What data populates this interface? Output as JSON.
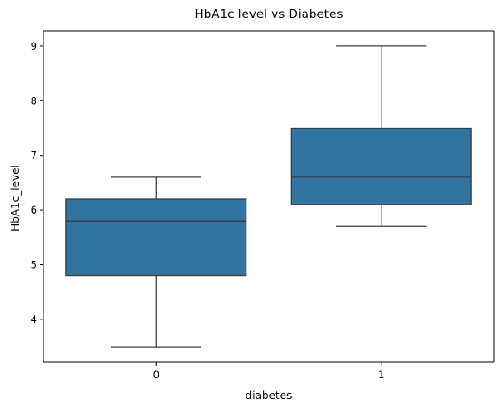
{
  "chart_data": {
    "type": "box",
    "title": "HbA1c level vs Diabetes",
    "xlabel": "diabetes",
    "ylabel": "HbA1c_level",
    "categories": [
      "0",
      "1"
    ],
    "boxes": [
      {
        "category": "0",
        "whisker_low": 3.5,
        "q1": 4.8,
        "median": 5.8,
        "q3": 6.2,
        "whisker_high": 6.6
      },
      {
        "category": "1",
        "whisker_low": 5.7,
        "q1": 6.1,
        "median": 6.6,
        "q3": 7.5,
        "whisker_high": 9.0
      }
    ],
    "ylim": [
      3.22,
      9.28
    ],
    "yticks": [
      4,
      5,
      6,
      7,
      8,
      9
    ],
    "grid": false,
    "colors": {
      "box_fill": "#3274a1",
      "line": "#3d3d3d",
      "axis": "#000000"
    }
  }
}
